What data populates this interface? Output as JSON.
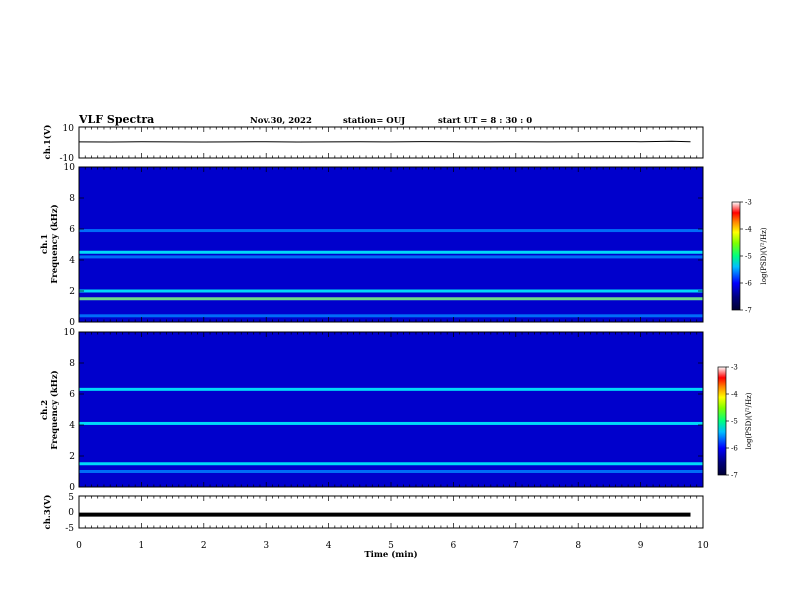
{
  "header": {
    "title": "VLF Spectra",
    "date": "Nov.30, 2022",
    "station": "station= OUJ",
    "start": "start  UT =   8 : 30 : 0"
  },
  "colors": {
    "waveform": "#000000",
    "colormap": [
      "#000033",
      "#00007f",
      "#0000ff",
      "#007fff",
      "#00ffff",
      "#7fff7f",
      "#ffff00",
      "#ff7f00",
      "#ff0000",
      "#ffffff"
    ]
  },
  "chart_data": [
    {
      "type": "line",
      "ylabel": "ch.1(V)",
      "ylim": [
        -10,
        10
      ],
      "yticks": [
        "10",
        "-10"
      ],
      "x": [
        0,
        0.5,
        1,
        1.5,
        2,
        2.5,
        3,
        3.5,
        4,
        4.5,
        5,
        5.5,
        6,
        6.5,
        7,
        7.5,
        8,
        8.5,
        9,
        9.5,
        9.8
      ],
      "y": [
        0.4,
        0.3,
        0.5,
        0.4,
        0.3,
        0.4,
        0.5,
        0.3,
        0.4,
        0.5,
        0.4,
        0.6,
        0.5,
        0.4,
        0.5,
        0.4,
        0.5,
        0.6,
        0.5,
        0.8,
        0.5
      ]
    },
    {
      "type": "heatmap",
      "ylabel": "ch.1\nFrequency (kHz)",
      "ylim": [
        0,
        10
      ],
      "yticks": [
        "0",
        "2",
        "4",
        "6",
        "8",
        "10"
      ],
      "colorbar": {
        "label": "log(PSD)(V²/Hz)",
        "ticks": [
          "-3",
          "-4",
          "-5",
          "-6",
          "-7"
        ],
        "range": [
          -7,
          -3
        ]
      },
      "bands": [
        {
          "f": 4.5,
          "level": -5.3
        },
        {
          "f": 4.2,
          "level": -5.6
        },
        {
          "f": 2.0,
          "level": -5.4
        },
        {
          "f": 1.5,
          "level": -5.0
        },
        {
          "f": 5.9,
          "level": -5.8
        },
        {
          "f": 0.4,
          "level": -5.6
        }
      ]
    },
    {
      "type": "heatmap",
      "ylabel": "ch.2\nFrequency (kHz)",
      "ylim": [
        0,
        10
      ],
      "yticks": [
        "0",
        "2",
        "4",
        "6",
        "8",
        "10"
      ],
      "colorbar": {
        "label": "log(PSD)(V²/Hz)",
        "ticks": [
          "-3",
          "-4",
          "-5",
          "-6",
          "-7"
        ],
        "range": [
          -7,
          -3
        ]
      },
      "bands": [
        {
          "f": 6.3,
          "level": -5.2
        },
        {
          "f": 4.1,
          "level": -5.4
        },
        {
          "f": 1.5,
          "level": -5.2
        },
        {
          "f": 1.0,
          "level": -5.5
        }
      ]
    },
    {
      "type": "line",
      "ylabel": "ch.3(V)",
      "ylim": [
        -5,
        5
      ],
      "yticks": [
        "5",
        "0",
        "-5"
      ],
      "x": [
        0,
        9.8
      ],
      "y": [
        -0.8,
        -0.8
      ]
    }
  ],
  "time_axis": {
    "xlabel": "Time (min)",
    "xlim": [
      0,
      10
    ],
    "ticks": [
      "0",
      "1",
      "2",
      "3",
      "4",
      "5",
      "6",
      "7",
      "8",
      "9",
      "10"
    ]
  }
}
